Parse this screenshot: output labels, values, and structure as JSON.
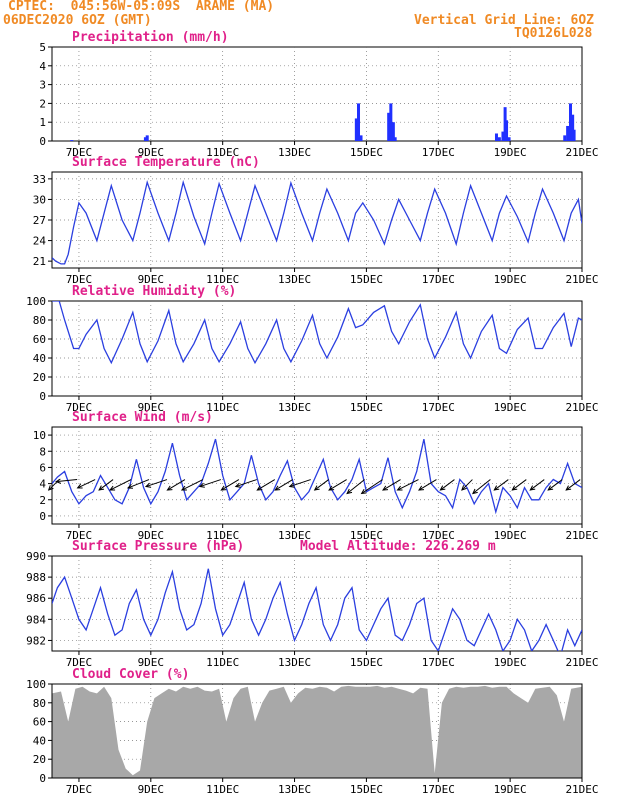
{
  "header": {
    "station": "CPTEC:  045:56W-05:09S  ARAME (MA)",
    "date": "06DEC2020 6OZ (GMT)",
    "grid_note": "Vertical Grid Line: 6OZ",
    "code": "TQ0126L028"
  },
  "x_axis": {
    "start_day": 6.25,
    "end_day": 21.0,
    "tick_days": [
      7,
      9,
      11,
      13,
      15,
      17,
      19,
      21
    ],
    "tick_labels": [
      "7DEC",
      "9DEC",
      "11DEC",
      "13DEC",
      "15DEC",
      "17DEC",
      "19DEC",
      "21DEC"
    ]
  },
  "colors": {
    "line": "#2b3fe0",
    "bar": "#2030ff",
    "cloud": "#a8a8a8",
    "title": "#e0218a",
    "header": "#f08a24",
    "arrow": "#000000"
  },
  "chart_data": [
    {
      "id": "precip",
      "type": "bar",
      "title": "Precipitation (mm/h)",
      "ylim": [
        0,
        5
      ],
      "yticks": [
        0,
        1,
        2,
        3,
        4,
        5
      ],
      "series": [
        {
          "x": [
            6.8,
            8.85,
            8.9,
            14.72,
            14.78,
            14.85,
            15.62,
            15.68,
            15.75,
            15.8,
            18.62,
            18.7,
            18.8,
            18.86,
            18.9,
            18.97,
            20.52,
            20.6,
            20.68,
            20.74,
            20.78
          ],
          "values": [
            0.05,
            0.2,
            0.3,
            1.2,
            2.0,
            0.3,
            1.5,
            2.0,
            1.0,
            0.2,
            0.4,
            0.2,
            0.5,
            1.8,
            1.1,
            0.2,
            0.3,
            0.8,
            2.0,
            1.4,
            0.6
          ]
        }
      ],
      "grid": true
    },
    {
      "id": "temp",
      "type": "line",
      "title": "Surface Temperature (nC)",
      "ylim": [
        20,
        34
      ],
      "yticks": [
        21,
        24,
        27,
        30,
        33
      ],
      "series": [
        {
          "x": [
            6.25,
            6.35,
            6.5,
            6.6,
            6.7,
            6.85,
            7.0,
            7.2,
            7.5,
            7.7,
            7.9,
            8.2,
            8.5,
            8.7,
            8.9,
            9.2,
            9.5,
            9.7,
            9.9,
            10.2,
            10.5,
            10.7,
            10.9,
            11.2,
            11.5,
            11.7,
            11.9,
            12.2,
            12.5,
            12.7,
            12.9,
            13.2,
            13.5,
            13.7,
            13.9,
            14.2,
            14.5,
            14.7,
            14.9,
            15.2,
            15.5,
            15.7,
            15.9,
            16.2,
            16.5,
            16.7,
            16.9,
            17.2,
            17.5,
            17.7,
            17.9,
            18.2,
            18.5,
            18.7,
            18.9,
            19.2,
            19.5,
            19.7,
            19.9,
            20.2,
            20.5,
            20.7,
            20.9,
            21.0
          ],
          "values": [
            21.5,
            21,
            20.6,
            20.6,
            22,
            26,
            29.5,
            28,
            24,
            28,
            32,
            27,
            24,
            28,
            32.5,
            28,
            24,
            28,
            32.5,
            27.5,
            23.5,
            28,
            32.3,
            28,
            24,
            28,
            32,
            28,
            24,
            28,
            32.4,
            28,
            24,
            28,
            31.5,
            28,
            24,
            28,
            29.5,
            27,
            23.5,
            27,
            30,
            27,
            24,
            28,
            31.5,
            28,
            23.5,
            28,
            32,
            28,
            24,
            28,
            30.5,
            27.5,
            23.8,
            28,
            31.5,
            28,
            24,
            28,
            30,
            26.5
          ]
        }
      ],
      "grid": true
    },
    {
      "id": "rh",
      "type": "line",
      "title": "Relative Humidity (%)",
      "ylim": [
        0,
        100
      ],
      "yticks": [
        0,
        20,
        40,
        60,
        80,
        100
      ],
      "series": [
        {
          "x": [
            6.25,
            6.45,
            6.6,
            6.85,
            7.0,
            7.2,
            7.5,
            7.7,
            7.9,
            8.2,
            8.5,
            8.7,
            8.9,
            9.2,
            9.5,
            9.7,
            9.9,
            10.2,
            10.5,
            10.7,
            10.9,
            11.2,
            11.5,
            11.7,
            11.9,
            12.2,
            12.5,
            12.7,
            12.9,
            13.2,
            13.5,
            13.7,
            13.9,
            14.2,
            14.5,
            14.7,
            14.9,
            15.2,
            15.5,
            15.7,
            15.9,
            16.2,
            16.5,
            16.7,
            16.9,
            17.2,
            17.5,
            17.7,
            17.9,
            18.2,
            18.5,
            18.7,
            18.9,
            19.2,
            19.5,
            19.7,
            19.9,
            20.2,
            20.5,
            20.7,
            20.9,
            21.0
          ],
          "values": [
            100,
            100,
            80,
            50,
            50,
            65,
            80,
            50,
            35,
            60,
            88,
            55,
            36,
            58,
            90,
            55,
            36,
            55,
            80,
            50,
            36,
            55,
            78,
            50,
            35,
            55,
            80,
            50,
            36,
            58,
            85,
            55,
            40,
            62,
            92,
            72,
            75,
            88,
            95,
            68,
            55,
            78,
            96,
            60,
            40,
            62,
            88,
            55,
            40,
            68,
            85,
            50,
            45,
            70,
            82,
            50,
            50,
            72,
            87,
            52,
            82,
            80
          ]
        }
      ],
      "grid": true
    },
    {
      "id": "wind",
      "type": "line",
      "title": "Surface Wind (m/s)",
      "ylim": [
        -1,
        11
      ],
      "yticks": [
        0,
        2,
        4,
        6,
        8,
        10
      ],
      "series": [
        {
          "x": [
            6.25,
            6.4,
            6.6,
            6.8,
            7.0,
            7.2,
            7.4,
            7.6,
            7.8,
            8.0,
            8.2,
            8.4,
            8.6,
            8.8,
            9.0,
            9.2,
            9.4,
            9.6,
            9.8,
            10.0,
            10.2,
            10.4,
            10.6,
            10.8,
            11.0,
            11.2,
            11.4,
            11.6,
            11.8,
            12.0,
            12.2,
            12.4,
            12.6,
            12.8,
            13.0,
            13.2,
            13.4,
            13.6,
            13.8,
            14.0,
            14.2,
            14.4,
            14.6,
            14.8,
            15.0,
            15.2,
            15.4,
            15.6,
            15.8,
            16.0,
            16.2,
            16.4,
            16.6,
            16.8,
            17.0,
            17.2,
            17.4,
            17.6,
            17.8,
            18.0,
            18.2,
            18.4,
            18.6,
            18.8,
            19.0,
            19.2,
            19.4,
            19.6,
            19.8,
            20.0,
            20.2,
            20.4,
            20.6,
            20.8,
            21.0
          ],
          "values": [
            4,
            4.8,
            5.5,
            3,
            1.5,
            2.5,
            3,
            5,
            3.5,
            2,
            1.5,
            3.5,
            7,
            3.5,
            1.5,
            3,
            5.5,
            9,
            5,
            2,
            3,
            4,
            6.5,
            9.5,
            5,
            2,
            3,
            4,
            7.5,
            4,
            2,
            3,
            5,
            6.8,
            3.5,
            2,
            3,
            5,
            7,
            3.5,
            2,
            3,
            4.5,
            7,
            3,
            3.5,
            4,
            7.2,
            3,
            1,
            3,
            5.5,
            9.5,
            4,
            3,
            2.5,
            1,
            4.5,
            3.5,
            1.5,
            3,
            4,
            0.5,
            3.5,
            2.5,
            1,
            3.5,
            2,
            2,
            3.5,
            4.5,
            4,
            6.5,
            4,
            3.5
          ]
        }
      ],
      "vectors": {
        "x": [
          6.45,
          6.95,
          7.45,
          7.95,
          8.45,
          8.95,
          9.45,
          9.95,
          10.45,
          10.95,
          11.45,
          11.95,
          12.45,
          12.95,
          13.45,
          13.95,
          14.45,
          14.95,
          15.45,
          15.95,
          16.45,
          16.95,
          17.45,
          17.95,
          18.45,
          18.95,
          19.45,
          19.95,
          20.45,
          20.95
        ],
        "u": [
          -1.5,
          -3,
          -2.5,
          -2,
          -3,
          -3,
          -3,
          -2.5,
          -3,
          -3,
          -2.5,
          -3,
          -2.5,
          -2.5,
          -3,
          -2,
          -2.5,
          -2.5,
          -3,
          -2.5,
          -3,
          -2.5,
          -2,
          -1.5,
          -2.5,
          -2,
          -2,
          -2,
          -2,
          -2
        ],
        "v": [
          -1.5,
          -0.3,
          -1.2,
          -1.5,
          -1.5,
          -1.2,
          -1,
          -1.5,
          -1.5,
          -1,
          -1.5,
          -1,
          -1.5,
          -1.5,
          -1,
          -1.5,
          -1.5,
          -2,
          -2,
          -1.5,
          -1.5,
          -1.5,
          -1.5,
          -1.5,
          -2,
          -1.5,
          -1.5,
          -1.5,
          -1.5,
          -1.5
        ]
      },
      "grid": true
    },
    {
      "id": "pressure",
      "type": "line",
      "title": "Surface Pressure (hPa)",
      "annotation": "Model Altitude: 226.269 m",
      "ylim": [
        981,
        990
      ],
      "yticks": [
        982,
        984,
        986,
        988,
        990
      ],
      "series": [
        {
          "x": [
            6.25,
            6.4,
            6.6,
            6.8,
            7.0,
            7.2,
            7.4,
            7.6,
            7.8,
            8.0,
            8.2,
            8.4,
            8.6,
            8.8,
            9.0,
            9.2,
            9.4,
            9.6,
            9.8,
            10.0,
            10.2,
            10.4,
            10.6,
            10.8,
            11.0,
            11.2,
            11.4,
            11.6,
            11.8,
            12.0,
            12.2,
            12.4,
            12.6,
            12.8,
            13.0,
            13.2,
            13.4,
            13.6,
            13.8,
            14.0,
            14.2,
            14.4,
            14.6,
            14.8,
            15.0,
            15.2,
            15.4,
            15.6,
            15.8,
            16.0,
            16.2,
            16.4,
            16.6,
            16.8,
            17.0,
            17.2,
            17.4,
            17.6,
            17.8,
            18.0,
            18.2,
            18.4,
            18.6,
            18.8,
            19.0,
            19.2,
            19.4,
            19.6,
            19.8,
            20.0,
            20.2,
            20.4,
            20.6,
            20.8,
            21.0
          ],
          "values": [
            985.5,
            987,
            988,
            986,
            984,
            983,
            985,
            987,
            984.5,
            982.5,
            983,
            985.5,
            986.8,
            984,
            982.5,
            984,
            986.5,
            988.5,
            985,
            983,
            983.5,
            985.5,
            988.8,
            985,
            982.5,
            983.5,
            985.5,
            987.5,
            984,
            982.5,
            984,
            986,
            987.5,
            984.5,
            982,
            983.5,
            985.5,
            987,
            983.5,
            982,
            983.5,
            986,
            987,
            983,
            982,
            983.5,
            985,
            986,
            982.5,
            982,
            983.5,
            985.5,
            986,
            982,
            981,
            983,
            985,
            984,
            982,
            981.5,
            983,
            984.5,
            983,
            981,
            982,
            984,
            983,
            981,
            982,
            983.5,
            982,
            980.5,
            983,
            981.5,
            983
          ]
        }
      ],
      "grid": true
    },
    {
      "id": "cloud",
      "type": "area",
      "title": "Cloud Cover (%)",
      "ylim": [
        0,
        100
      ],
      "yticks": [
        0,
        20,
        40,
        60,
        80,
        100
      ],
      "series": [
        {
          "x": [
            6.25,
            6.5,
            6.7,
            6.9,
            7.1,
            7.3,
            7.5,
            7.7,
            7.9,
            8.1,
            8.3,
            8.5,
            8.7,
            8.9,
            9.1,
            9.3,
            9.5,
            9.7,
            9.9,
            10.1,
            10.3,
            10.5,
            10.7,
            10.9,
            11.1,
            11.3,
            11.5,
            11.7,
            11.9,
            12.1,
            12.3,
            12.5,
            12.7,
            12.9,
            13.1,
            13.3,
            13.5,
            13.7,
            13.9,
            14.1,
            14.3,
            14.5,
            14.7,
            14.9,
            15.1,
            15.3,
            15.5,
            15.7,
            15.9,
            16.1,
            16.3,
            16.5,
            16.7,
            16.9,
            17.1,
            17.3,
            17.5,
            17.7,
            17.9,
            18.1,
            18.3,
            18.5,
            18.7,
            18.9,
            19.1,
            19.3,
            19.5,
            19.7,
            19.9,
            20.1,
            20.3,
            20.5,
            20.7,
            21.0
          ],
          "values": [
            90,
            92,
            60,
            95,
            97,
            92,
            90,
            97,
            85,
            30,
            10,
            3,
            8,
            60,
            85,
            90,
            95,
            92,
            97,
            95,
            97,
            93,
            92,
            95,
            60,
            85,
            95,
            97,
            60,
            80,
            93,
            95,
            97,
            80,
            90,
            96,
            95,
            97,
            96,
            92,
            97,
            98,
            97,
            97,
            97,
            98,
            96,
            97,
            95,
            93,
            90,
            96,
            95,
            5,
            80,
            95,
            97,
            96,
            97,
            97,
            98,
            96,
            97,
            97,
            90,
            85,
            80,
            95,
            96,
            97,
            88,
            60,
            95,
            97
          ]
        }
      ],
      "grid": true
    }
  ]
}
